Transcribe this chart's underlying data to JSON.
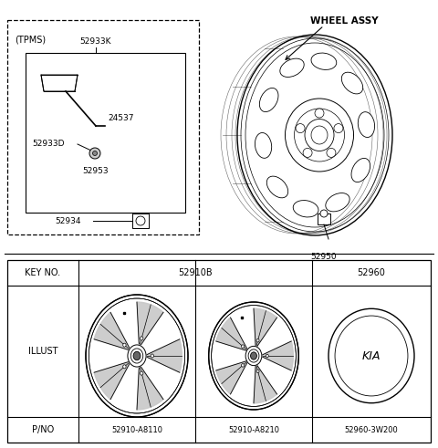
{
  "bg_color": "#ffffff",
  "line_color": "#000000",
  "tpms_label": "(TPMS)",
  "wheel_assy_label": "WHEEL ASSY",
  "figsize": [
    4.8,
    4.91
  ],
  "dpi": 100,
  "table_key_no_label": "KEY NO.",
  "table_key_52910B": "52910B",
  "table_key_52960": "52960",
  "table_illust_label": "ILLUST",
  "table_pno_label": "P/NO",
  "table_pno_A8110": "52910-A8110",
  "table_pno_A8210": "52910-A8210",
  "table_pno_3W200": "52960-3W200",
  "parts_tpms_inner": [
    "52933K",
    "24537",
    "52933D",
    "52953"
  ],
  "part_52934": "52934",
  "part_52950": "52950"
}
